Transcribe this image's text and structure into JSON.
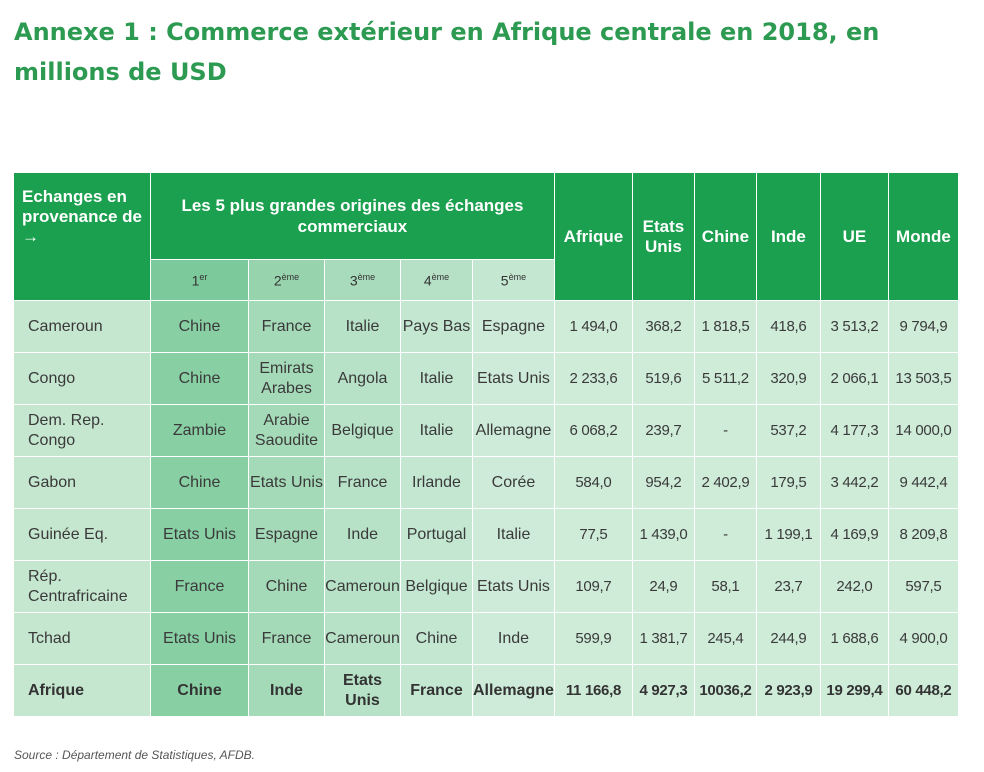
{
  "title": "Annexe 1 : Commerce extérieur en Afrique centrale en 2018, en millions de USD",
  "header": {
    "first": "Echanges en provenance de →",
    "origins": "Les 5 plus grandes origines des échanges commerciaux",
    "ranks": [
      {
        "n": "1",
        "sup": "er"
      },
      {
        "n": "2",
        "sup": "ème"
      },
      {
        "n": "3",
        "sup": "ème"
      },
      {
        "n": "4",
        "sup": "ème"
      },
      {
        "n": "5",
        "sup": "ème"
      }
    ],
    "columns": [
      "Afrique",
      "Etats Unis",
      "Chine",
      "Inde",
      "UE",
      "Monde"
    ]
  },
  "rows": [
    {
      "country": "Cameroun",
      "origins": [
        "Chine",
        "France",
        "Italie",
        "Pays Bas",
        "Espagne"
      ],
      "values": [
        "1 494,0",
        "368,2",
        "1 818,5",
        "418,6",
        "3 513,2",
        "9 794,9"
      ]
    },
    {
      "country": "Congo",
      "origins": [
        "Chine",
        "Emirats Arabes",
        "Angola",
        "Italie",
        "Etats Unis"
      ],
      "values": [
        "2 233,6",
        "519,6",
        "5 511,2",
        "320,9",
        "2 066,1",
        "13 503,5"
      ]
    },
    {
      "country": "Dem. Rep. Congo",
      "origins": [
        "Zambie",
        "Arabie Saoudite",
        "Belgique",
        "Italie",
        "Allemagne"
      ],
      "values": [
        "6 068,2",
        "239,7",
        "-",
        "537,2",
        "4 177,3",
        "14 000,0"
      ]
    },
    {
      "country": "Gabon",
      "origins": [
        "Chine",
        "Etats Unis",
        "France",
        "Irlande",
        "Corée"
      ],
      "values": [
        "584,0",
        "954,2",
        "2 402,9",
        "179,5",
        "3 442,2",
        "9 442,4"
      ]
    },
    {
      "country": "Guinée Eq.",
      "origins": [
        "Etats Unis",
        "Espagne",
        "Inde",
        "Portugal",
        "Italie"
      ],
      "values": [
        "77,5",
        "1 439,0",
        "-",
        "1 199,1",
        "4 169,9",
        "8 209,8"
      ]
    },
    {
      "country": "Rép. Centrafricaine",
      "origins": [
        "France",
        "Chine",
        "Cameroun",
        "Belgique",
        "Etats Unis"
      ],
      "values": [
        "109,7",
        "24,9",
        "58,1",
        "23,7",
        "242,0",
        "597,5"
      ]
    },
    {
      "country": "Tchad",
      "origins": [
        "Etats Unis",
        "France",
        "Cameroun",
        "Chine",
        "Inde"
      ],
      "values": [
        "599,9",
        "1 381,7",
        "245,4",
        "244,9",
        "1 688,6",
        "4 900,0"
      ]
    },
    {
      "country": "Afrique",
      "origins": [
        "Chine",
        "Inde",
        "Etats Unis",
        "France",
        "Allemagne"
      ],
      "values": [
        "11 166,8",
        "4 927,3",
        "10036,2",
        "2 923,9",
        "19 299,4",
        "60 448,2"
      ]
    }
  ],
  "source": "Source : Département de Statistiques, AFDB."
}
